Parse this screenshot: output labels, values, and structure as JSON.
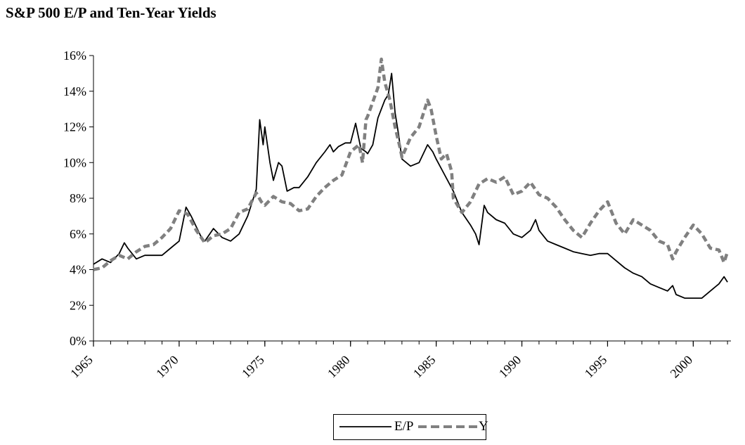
{
  "chart_data": {
    "type": "line",
    "title": "S&P 500 E/P and Ten-Year Yields",
    "xlabel": "",
    "ylabel": "",
    "xlim": [
      1965,
      2002.2
    ],
    "ylim": [
      0,
      16
    ],
    "x_ticks": [
      "1965",
      "1970",
      "1975",
      "1980",
      "1985",
      "1990",
      "1995",
      "2000"
    ],
    "y_ticks": [
      "0%",
      "2%",
      "4%",
      "6%",
      "8%",
      "10%",
      "12%",
      "14%",
      "16%"
    ],
    "grid": false,
    "legend_position": "bottom-center",
    "series": [
      {
        "name": "E/P",
        "color": "#000000",
        "style": "solid",
        "points": [
          [
            1965.0,
            4.3
          ],
          [
            1965.5,
            4.6
          ],
          [
            1966.0,
            4.4
          ],
          [
            1966.5,
            4.9
          ],
          [
            1966.8,
            5.5
          ],
          [
            1967.0,
            5.2
          ],
          [
            1967.5,
            4.6
          ],
          [
            1968.0,
            4.8
          ],
          [
            1968.5,
            4.8
          ],
          [
            1969.0,
            4.8
          ],
          [
            1969.5,
            5.2
          ],
          [
            1970.0,
            5.6
          ],
          [
            1970.4,
            7.5
          ],
          [
            1970.7,
            7.0
          ],
          [
            1971.0,
            6.4
          ],
          [
            1971.3,
            5.8
          ],
          [
            1971.5,
            5.6
          ],
          [
            1972.0,
            6.3
          ],
          [
            1972.5,
            5.8
          ],
          [
            1973.0,
            5.6
          ],
          [
            1973.5,
            6.0
          ],
          [
            1974.0,
            7.0
          ],
          [
            1974.5,
            8.5
          ],
          [
            1974.7,
            12.4
          ],
          [
            1974.9,
            11.0
          ],
          [
            1975.0,
            12.0
          ],
          [
            1975.3,
            10.0
          ],
          [
            1975.5,
            9.0
          ],
          [
            1975.8,
            10.0
          ],
          [
            1976.0,
            9.8
          ],
          [
            1976.3,
            8.4
          ],
          [
            1976.7,
            8.6
          ],
          [
            1977.0,
            8.6
          ],
          [
            1977.5,
            9.2
          ],
          [
            1978.0,
            10.0
          ],
          [
            1978.5,
            10.6
          ],
          [
            1978.8,
            11.0
          ],
          [
            1979.0,
            10.6
          ],
          [
            1979.3,
            10.9
          ],
          [
            1979.7,
            11.1
          ],
          [
            1980.0,
            11.1
          ],
          [
            1980.3,
            12.2
          ],
          [
            1980.6,
            10.8
          ],
          [
            1980.9,
            10.6
          ],
          [
            1981.0,
            10.5
          ],
          [
            1981.3,
            11.0
          ],
          [
            1981.6,
            12.5
          ],
          [
            1982.0,
            13.5
          ],
          [
            1982.2,
            13.8
          ],
          [
            1982.4,
            15.0
          ],
          [
            1982.6,
            12.8
          ],
          [
            1982.8,
            11.6
          ],
          [
            1983.0,
            10.2
          ],
          [
            1983.5,
            9.8
          ],
          [
            1984.0,
            10.0
          ],
          [
            1984.5,
            11.0
          ],
          [
            1984.8,
            10.6
          ],
          [
            1985.0,
            10.2
          ],
          [
            1985.5,
            9.3
          ],
          [
            1986.0,
            8.4
          ],
          [
            1986.5,
            7.2
          ],
          [
            1987.0,
            6.5
          ],
          [
            1987.3,
            6.0
          ],
          [
            1987.5,
            5.4
          ],
          [
            1987.8,
            7.6
          ],
          [
            1988.0,
            7.2
          ],
          [
            1988.5,
            6.8
          ],
          [
            1989.0,
            6.6
          ],
          [
            1989.5,
            6.0
          ],
          [
            1990.0,
            5.8
          ],
          [
            1990.5,
            6.2
          ],
          [
            1990.8,
            6.8
          ],
          [
            1991.0,
            6.2
          ],
          [
            1991.5,
            5.6
          ],
          [
            1992.0,
            5.4
          ],
          [
            1992.5,
            5.2
          ],
          [
            1993.0,
            5.0
          ],
          [
            1993.5,
            4.9
          ],
          [
            1994.0,
            4.8
          ],
          [
            1994.5,
            4.9
          ],
          [
            1995.0,
            4.9
          ],
          [
            1995.5,
            4.5
          ],
          [
            1996.0,
            4.1
          ],
          [
            1996.5,
            3.8
          ],
          [
            1997.0,
            3.6
          ],
          [
            1997.5,
            3.2
          ],
          [
            1998.0,
            3.0
          ],
          [
            1998.5,
            2.8
          ],
          [
            1998.8,
            3.1
          ],
          [
            1999.0,
            2.6
          ],
          [
            1999.5,
            2.4
          ],
          [
            2000.0,
            2.4
          ],
          [
            2000.5,
            2.4
          ],
          [
            2001.0,
            2.8
          ],
          [
            2001.5,
            3.2
          ],
          [
            2001.8,
            3.6
          ],
          [
            2002.0,
            3.3
          ]
        ]
      },
      {
        "name": "Y",
        "color": "#808080",
        "style": "dashed",
        "points": [
          [
            1965.0,
            4.0
          ],
          [
            1965.5,
            4.1
          ],
          [
            1966.0,
            4.5
          ],
          [
            1966.5,
            4.8
          ],
          [
            1967.0,
            4.6
          ],
          [
            1967.5,
            5.0
          ],
          [
            1968.0,
            5.3
          ],
          [
            1968.5,
            5.4
          ],
          [
            1969.0,
            5.8
          ],
          [
            1969.5,
            6.3
          ],
          [
            1970.0,
            7.3
          ],
          [
            1970.5,
            7.1
          ],
          [
            1971.0,
            6.2
          ],
          [
            1971.5,
            5.5
          ],
          [
            1972.0,
            5.9
          ],
          [
            1972.5,
            6.0
          ],
          [
            1973.0,
            6.3
          ],
          [
            1973.5,
            7.2
          ],
          [
            1974.0,
            7.4
          ],
          [
            1974.5,
            8.3
          ],
          [
            1974.8,
            7.8
          ],
          [
            1975.0,
            7.6
          ],
          [
            1975.5,
            8.1
          ],
          [
            1976.0,
            7.8
          ],
          [
            1976.5,
            7.7
          ],
          [
            1977.0,
            7.3
          ],
          [
            1977.5,
            7.4
          ],
          [
            1978.0,
            8.1
          ],
          [
            1978.5,
            8.6
          ],
          [
            1979.0,
            9.0
          ],
          [
            1979.5,
            9.3
          ],
          [
            1980.0,
            10.6
          ],
          [
            1980.5,
            11.0
          ],
          [
            1980.7,
            10.0
          ],
          [
            1980.9,
            12.4
          ],
          [
            1981.0,
            12.6
          ],
          [
            1981.3,
            13.4
          ],
          [
            1981.6,
            14.2
          ],
          [
            1981.8,
            15.8
          ],
          [
            1982.0,
            14.5
          ],
          [
            1982.3,
            13.5
          ],
          [
            1982.6,
            12.0
          ],
          [
            1982.9,
            10.8
          ],
          [
            1983.0,
            10.3
          ],
          [
            1983.5,
            11.4
          ],
          [
            1984.0,
            12.0
          ],
          [
            1984.5,
            13.5
          ],
          [
            1984.7,
            13.0
          ],
          [
            1985.0,
            11.5
          ],
          [
            1985.3,
            10.2
          ],
          [
            1985.6,
            10.5
          ],
          [
            1985.9,
            9.5
          ],
          [
            1986.0,
            8.0
          ],
          [
            1986.5,
            7.2
          ],
          [
            1987.0,
            7.8
          ],
          [
            1987.5,
            8.8
          ],
          [
            1988.0,
            9.1
          ],
          [
            1988.5,
            8.9
          ],
          [
            1989.0,
            9.2
          ],
          [
            1989.5,
            8.2
          ],
          [
            1990.0,
            8.4
          ],
          [
            1990.5,
            8.9
          ],
          [
            1991.0,
            8.2
          ],
          [
            1991.5,
            8.0
          ],
          [
            1992.0,
            7.5
          ],
          [
            1992.5,
            6.8
          ],
          [
            1993.0,
            6.2
          ],
          [
            1993.5,
            5.8
          ],
          [
            1994.0,
            6.6
          ],
          [
            1994.5,
            7.3
          ],
          [
            1995.0,
            7.8
          ],
          [
            1995.5,
            6.6
          ],
          [
            1996.0,
            6.0
          ],
          [
            1996.5,
            6.8
          ],
          [
            1997.0,
            6.5
          ],
          [
            1997.5,
            6.2
          ],
          [
            1998.0,
            5.6
          ],
          [
            1998.5,
            5.4
          ],
          [
            1998.8,
            4.6
          ],
          [
            1999.0,
            5.0
          ],
          [
            1999.5,
            5.8
          ],
          [
            2000.0,
            6.5
          ],
          [
            2000.5,
            6.0
          ],
          [
            2001.0,
            5.2
          ],
          [
            2001.5,
            5.1
          ],
          [
            2001.8,
            4.4
          ],
          [
            2002.0,
            5.0
          ]
        ]
      }
    ]
  }
}
